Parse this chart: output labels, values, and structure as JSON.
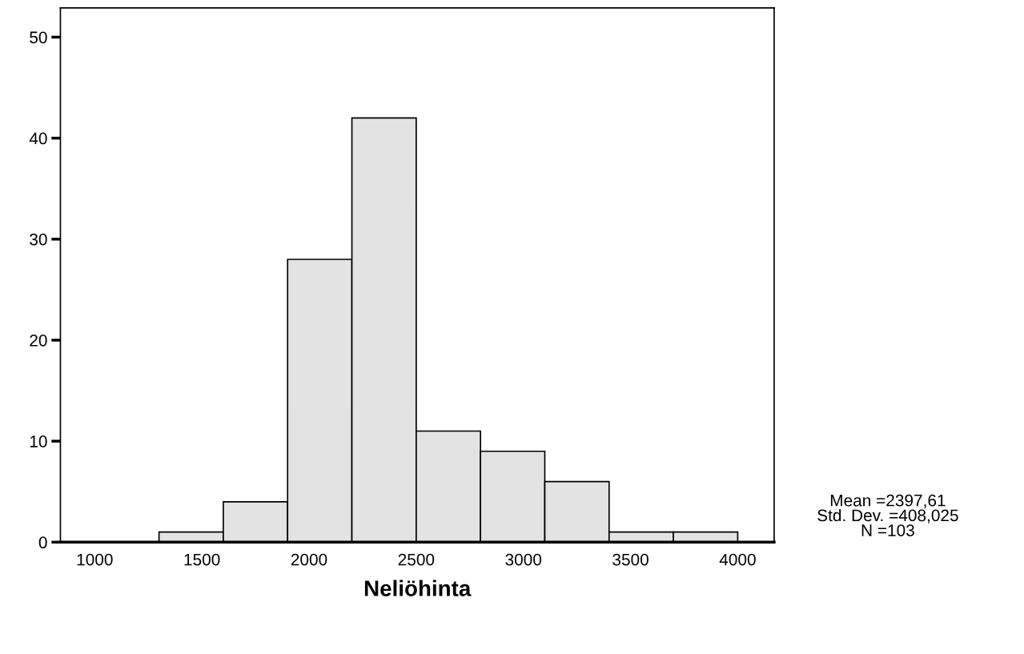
{
  "chart_data": {
    "type": "histogram",
    "xlabel": "Neliöhinta",
    "bins": [
      1300,
      1600,
      1900,
      2200,
      2500,
      2800,
      3100,
      3400,
      3700,
      4000
    ],
    "values": [
      1,
      4,
      28,
      42,
      11,
      9,
      6,
      1,
      1
    ],
    "color": "#e3e3e3",
    "xlim": [
      840,
      4170
    ],
    "xticks": [
      1000,
      1500,
      2000,
      2500,
      3000,
      3500,
      4000
    ],
    "ylim": [
      0,
      52.9
    ],
    "yticks": [
      0,
      10,
      20,
      30,
      40,
      50
    ],
    "grid": false,
    "annotations": [
      "Mean =2397,61\nStd. Dev. =408,025\nN =103"
    ]
  }
}
